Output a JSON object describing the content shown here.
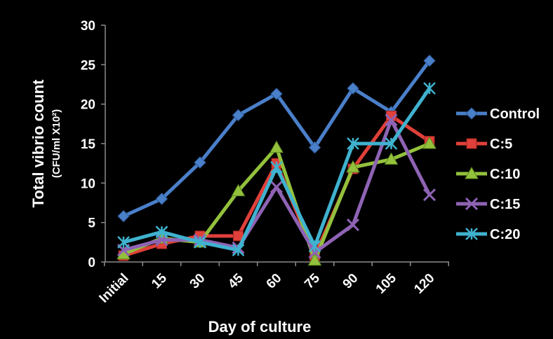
{
  "chart_data": {
    "type": "line",
    "title": "",
    "xlabel": "Day of culture",
    "ylabel": "Total vibrio count",
    "ylabel_unit": "(CFU/ml X10²)",
    "categories": [
      "Initial",
      "15",
      "30",
      "45",
      "60",
      "75",
      "90",
      "105",
      "120"
    ],
    "ylim": [
      0,
      30
    ],
    "yticks": [
      "0",
      "5",
      "10",
      "15",
      "20",
      "25",
      "30"
    ],
    "grid": false,
    "legend_position": "right",
    "series": [
      {
        "name": "Control",
        "color": "#4a7fc9",
        "marker": "diamond",
        "values": [
          5.8,
          8.0,
          12.6,
          18.6,
          21.3,
          14.5,
          22.0,
          19.0,
          25.5
        ]
      },
      {
        "name": "C:5",
        "color": "#e0403a",
        "marker": "square",
        "values": [
          0.8,
          2.3,
          3.3,
          3.3,
          12.5,
          0.8,
          11.8,
          18.5,
          15.3
        ]
      },
      {
        "name": "C:10",
        "color": "#93c13c",
        "marker": "triangle",
        "values": [
          1.0,
          3.0,
          2.5,
          9.0,
          14.5,
          0.2,
          12.0,
          13.0,
          15.0
        ]
      },
      {
        "name": "C:15",
        "color": "#8e63b4",
        "marker": "x",
        "values": [
          1.5,
          2.8,
          2.8,
          1.8,
          9.5,
          1.2,
          4.7,
          18.0,
          8.5
        ]
      },
      {
        "name": "C:20",
        "color": "#3fb2cf",
        "marker": "asterisk",
        "values": [
          2.5,
          3.8,
          2.5,
          1.5,
          12.0,
          2.0,
          15.0,
          15.0,
          22.0
        ]
      }
    ]
  }
}
